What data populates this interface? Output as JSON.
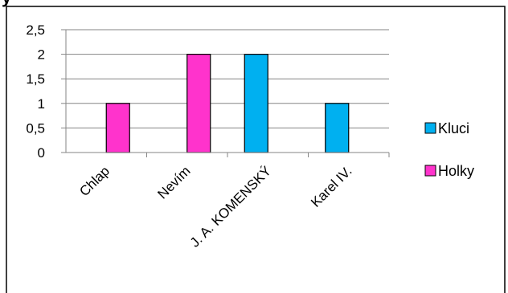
{
  "chart_data": {
    "type": "bar",
    "categories": [
      "Chlap",
      "Nevím",
      "J. A. KOMENSKÝ",
      "Karel IV."
    ],
    "series": [
      {
        "name": "Kluci",
        "values": [
          0,
          0,
          2,
          1
        ],
        "color": "#00B0F0"
      },
      {
        "name": "Holky",
        "values": [
          1,
          2,
          0,
          0
        ],
        "color": "#FF33CC"
      }
    ],
    "yticks": [
      "0",
      "0,5",
      "1",
      "1,5",
      "2",
      "2,5"
    ],
    "ylim": [
      0,
      2.5
    ],
    "grid": true,
    "legend_position": "right"
  }
}
